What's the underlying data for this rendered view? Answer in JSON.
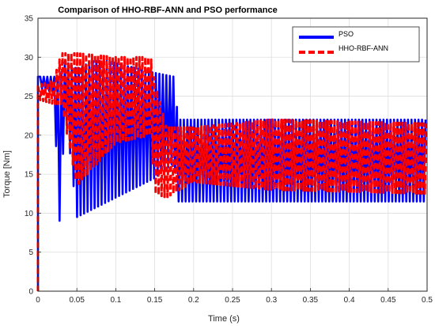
{
  "chart_data": {
    "type": "line",
    "title": "Comparison of HHO-RBF-ANN and PSO performance",
    "xlabel": "Time (s)",
    "ylabel": "Torque [Nm]",
    "xlim": [
      0,
      0.5
    ],
    "ylim": [
      0,
      35
    ],
    "xticks": [
      0,
      0.05,
      0.1,
      0.15,
      0.2,
      0.25,
      0.3,
      0.35,
      0.4,
      0.45,
      0.5
    ],
    "xtick_labels": [
      "0",
      "0.05",
      "0.1",
      "0.15",
      "0.2",
      "0.25",
      "0.3",
      "0.35",
      "0.4",
      "0.45",
      "0.5"
    ],
    "yticks": [
      0,
      5,
      10,
      15,
      20,
      25,
      30,
      35
    ],
    "ytick_labels": [
      "0",
      "5",
      "10",
      "15",
      "20",
      "25",
      "30",
      "35"
    ],
    "grid": true,
    "legend_position": "top-right",
    "series": [
      {
        "name": "PSO",
        "color": "#0000ff",
        "style": "solid",
        "envelope": [
          {
            "x": 0.0,
            "low": 0,
            "high": 0
          },
          {
            "x": 0.003,
            "low": 26,
            "high": 27.5
          },
          {
            "x": 0.02,
            "low": 25.5,
            "high": 27.5
          },
          {
            "x": 0.028,
            "low": 8.5,
            "high": 27.5
          },
          {
            "x": 0.035,
            "low": 23.5,
            "high": 29.5
          },
          {
            "x": 0.05,
            "low": 9.5,
            "high": 28.5
          },
          {
            "x": 0.07,
            "low": 10.5,
            "high": 29.5
          },
          {
            "x": 0.09,
            "low": 11.5,
            "high": 29.5
          },
          {
            "x": 0.11,
            "low": 12.5,
            "high": 29.0
          },
          {
            "x": 0.13,
            "low": 13.5,
            "high": 28.5
          },
          {
            "x": 0.15,
            "low": 14.5,
            "high": 28.0
          },
          {
            "x": 0.175,
            "low": 16.5,
            "high": 27.5
          },
          {
            "x": 0.18,
            "low": 11.5,
            "high": 22.0
          },
          {
            "x": 0.5,
            "low": 11.5,
            "high": 22.0
          }
        ]
      },
      {
        "name": "HHO-RBF-ANN",
        "color": "#ff0000",
        "style": "dashed",
        "envelope": [
          {
            "x": 0.0,
            "low": 0,
            "high": 0
          },
          {
            "x": 0.003,
            "low": 24.5,
            "high": 26.5
          },
          {
            "x": 0.02,
            "low": 24.0,
            "high": 27.0
          },
          {
            "x": 0.03,
            "low": 24.0,
            "high": 30.5
          },
          {
            "x": 0.05,
            "low": 13.5,
            "high": 30.5
          },
          {
            "x": 0.1,
            "low": 19.0,
            "high": 30.0
          },
          {
            "x": 0.145,
            "low": 20.0,
            "high": 30.0
          },
          {
            "x": 0.15,
            "low": 12.5,
            "high": 27.0
          },
          {
            "x": 0.165,
            "low": 12.0,
            "high": 21.0
          },
          {
            "x": 0.2,
            "low": 14.0,
            "high": 21.0
          },
          {
            "x": 0.3,
            "low": 13.0,
            "high": 22.0
          },
          {
            "x": 0.5,
            "low": 12.5,
            "high": 21.5
          }
        ]
      }
    ]
  }
}
